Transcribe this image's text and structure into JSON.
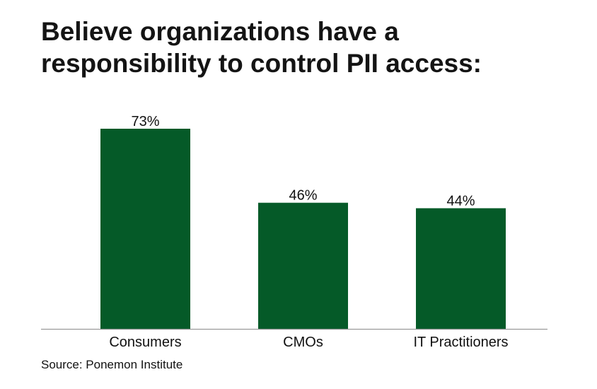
{
  "chart_data": {
    "type": "bar",
    "title_lines": [
      "Believe organizations have a",
      "responsibility to control PII access:"
    ],
    "categories": [
      "Consumers",
      "CMOs",
      "IT Practitioners"
    ],
    "values": [
      73,
      46,
      44
    ],
    "value_labels": [
      "73%",
      "46%",
      "44%"
    ],
    "unit": "%",
    "xlabel": "",
    "ylabel": "",
    "ylim": [
      0,
      73
    ],
    "grid": false,
    "legend": "none",
    "bar_color": "#055a28",
    "axis_color": "#9a9a9a"
  },
  "source": "Source: Ponemon Institute"
}
